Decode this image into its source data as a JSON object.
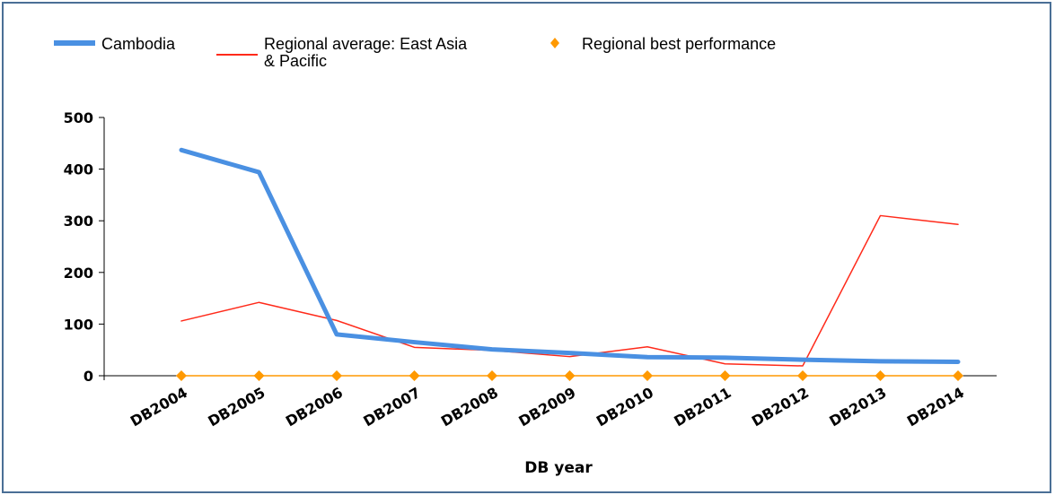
{
  "chart_data": {
    "type": "line",
    "title": "",
    "xlabel": "DB year",
    "ylabel": "",
    "categories": [
      "DB2004",
      "DB2005",
      "DB2006",
      "DB2007",
      "DB2008",
      "DB2009",
      "DB2010",
      "DB2011",
      "DB2012",
      "DB2013",
      "DB2014"
    ],
    "ylim": [
      0,
      500
    ],
    "yticks": [
      0,
      100,
      200,
      300,
      400,
      500
    ],
    "grid": false,
    "legend_position": "top-left",
    "series": [
      {
        "name": "Cambodia",
        "color": "#4a90e2",
        "style": "thick-line",
        "values": [
          437,
          394,
          80,
          65,
          51,
          44,
          36,
          35,
          31,
          28,
          27
        ]
      },
      {
        "name": "Regional average: East Asia & Pacific",
        "color": "#ff2a1a",
        "style": "thin-line",
        "values": [
          106,
          142,
          107,
          55,
          49,
          37,
          56,
          23,
          19,
          310,
          293
        ]
      },
      {
        "name": "Regional best performance",
        "color": "#ff9900",
        "style": "diamond-markers",
        "values": [
          0,
          0,
          0,
          0,
          0,
          0,
          0,
          0,
          0,
          0,
          0
        ]
      }
    ]
  },
  "legend": {
    "cambodia": "Cambodia",
    "regional_average_line1": "Regional average: East Asia",
    "regional_average_line2": "& Pacific",
    "regional_best": "Regional best performance"
  }
}
